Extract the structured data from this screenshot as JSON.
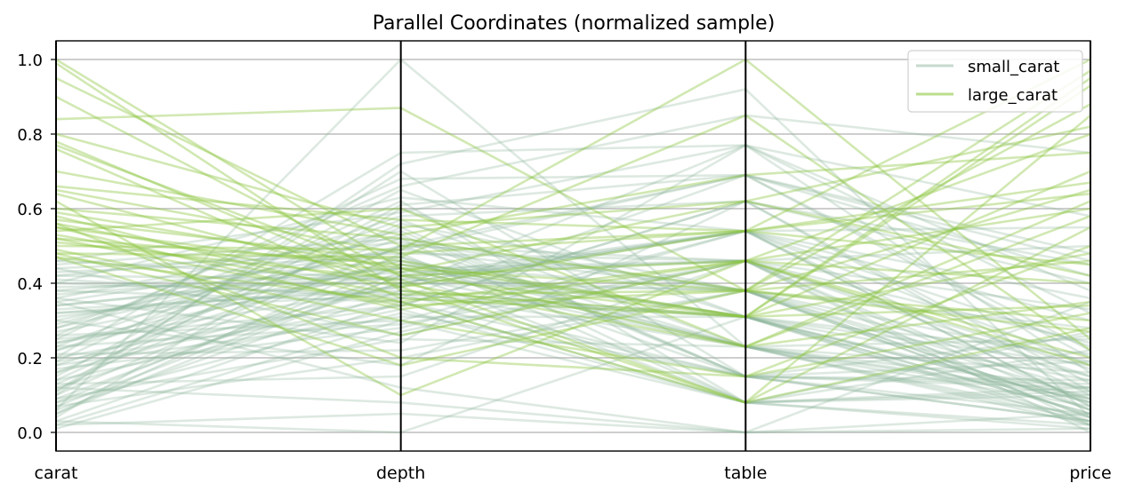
{
  "chart_data": {
    "type": "parallel_coordinates",
    "title": "Parallel Coordinates (normalized sample)",
    "axes": [
      "carat",
      "depth",
      "table",
      "price"
    ],
    "ylim": [
      0,
      1
    ],
    "yticks": [
      "0.0",
      "0.2",
      "0.4",
      "0.6",
      "0.8",
      "1.0"
    ],
    "grid": true,
    "legend_position": "top-right",
    "series": [
      {
        "name": "small_carat",
        "color": "#8fb59c",
        "opacity": 0.3,
        "lines": [
          [
            0.02,
            0.3,
            0.08,
            0.02
          ],
          [
            0.03,
            0.35,
            0.15,
            0.03
          ],
          [
            0.05,
            0.42,
            0.23,
            0.04
          ],
          [
            0.06,
            0.38,
            0.31,
            0.05
          ],
          [
            0.08,
            0.45,
            0.38,
            0.06
          ],
          [
            0.1,
            0.5,
            0.46,
            0.08
          ],
          [
            0.12,
            0.4,
            0.54,
            0.1
          ],
          [
            0.14,
            0.33,
            0.08,
            0.12
          ],
          [
            0.16,
            0.55,
            0.15,
            0.14
          ],
          [
            0.18,
            0.47,
            0.23,
            0.07
          ],
          [
            0.2,
            0.36,
            0.31,
            0.09
          ],
          [
            0.22,
            0.52,
            0.38,
            0.11
          ],
          [
            0.24,
            0.44,
            0.46,
            0.15
          ],
          [
            0.26,
            0.3,
            0.54,
            0.18
          ],
          [
            0.28,
            0.58,
            0.62,
            0.13
          ],
          [
            0.3,
            0.49,
            0.69,
            0.2
          ],
          [
            0.32,
            0.39,
            0.77,
            0.16
          ],
          [
            0.34,
            0.43,
            0.08,
            0.22
          ],
          [
            0.36,
            0.54,
            0.15,
            0.19
          ],
          [
            0.38,
            0.46,
            0.23,
            0.25
          ],
          [
            0.4,
            0.37,
            0.31,
            0.21
          ],
          [
            0.42,
            0.51,
            0.38,
            0.28
          ],
          [
            0.44,
            0.48,
            0.46,
            0.24
          ],
          [
            0.46,
            0.41,
            0.54,
            0.3
          ],
          [
            0.04,
            0.6,
            0.31,
            0.03
          ],
          [
            0.07,
            0.2,
            0.38,
            0.04
          ],
          [
            0.09,
            0.25,
            0.23,
            0.02
          ],
          [
            0.11,
            0.7,
            0.15,
            0.05
          ],
          [
            0.13,
            0.15,
            0.46,
            0.06
          ],
          [
            0.15,
            0.65,
            0.31,
            0.08
          ],
          [
            0.17,
            0.28,
            0.54,
            0.07
          ],
          [
            0.19,
            0.62,
            0.08,
            0.1
          ],
          [
            0.21,
            0.22,
            0.38,
            0.09
          ],
          [
            0.23,
            0.57,
            0.23,
            0.12
          ],
          [
            0.25,
            0.34,
            0.62,
            0.11
          ],
          [
            0.27,
            0.45,
            0.31,
            0.14
          ],
          [
            0.29,
            0.53,
            0.15,
            0.13
          ],
          [
            0.31,
            0.42,
            0.46,
            0.17
          ],
          [
            0.33,
            0.38,
            0.23,
            0.16
          ],
          [
            0.35,
            0.49,
            0.38,
            0.19
          ],
          [
            0.37,
            0.44,
            0.31,
            0.18
          ],
          [
            0.39,
            0.4,
            0.54,
            0.23
          ],
          [
            0.41,
            0.36,
            0.69,
            0.22
          ],
          [
            0.43,
            0.47,
            0.15,
            0.26
          ],
          [
            0.45,
            0.52,
            0.08,
            0.27
          ],
          [
            0.02,
            0.05,
            0.0,
            0.01
          ],
          [
            0.03,
            0.0,
            0.31,
            0.02
          ],
          [
            0.06,
            1.0,
            0.23,
            0.03
          ],
          [
            0.1,
            0.72,
            0.92,
            0.04
          ],
          [
            0.12,
            0.08,
            0.0,
            0.05
          ],
          [
            0.2,
            0.75,
            0.77,
            0.38
          ],
          [
            0.25,
            0.68,
            0.69,
            0.42
          ],
          [
            0.3,
            0.18,
            0.62,
            0.45
          ],
          [
            0.35,
            0.12,
            0.0,
            0.35
          ],
          [
            0.4,
            0.63,
            0.54,
            0.55
          ],
          [
            0.44,
            0.26,
            0.46,
            0.5
          ],
          [
            0.08,
            0.32,
            0.15,
            0.03
          ],
          [
            0.16,
            0.4,
            0.38,
            0.06
          ],
          [
            0.22,
            0.46,
            0.31,
            0.08
          ],
          [
            0.28,
            0.5,
            0.23,
            0.1
          ],
          [
            0.32,
            0.37,
            0.15,
            0.12
          ],
          [
            0.05,
            0.48,
            0.08,
            0.01
          ],
          [
            0.09,
            0.43,
            0.46,
            0.02
          ],
          [
            0.14,
            0.56,
            0.38,
            0.04
          ],
          [
            0.18,
            0.31,
            0.31,
            0.05
          ],
          [
            0.24,
            0.39,
            0.54,
            0.07
          ],
          [
            0.34,
            0.44,
            0.23,
            0.09
          ],
          [
            0.38,
            0.35,
            0.08,
            0.11
          ],
          [
            0.42,
            0.41,
            0.38,
            0.15
          ],
          [
            0.46,
            0.59,
            0.77,
            0.32
          ],
          [
            0.01,
            0.27,
            0.46,
            0.0
          ],
          [
            0.11,
            0.61,
            0.69,
            0.48
          ],
          [
            0.26,
            0.66,
            0.85,
            0.75
          ],
          [
            0.36,
            0.24,
            0.77,
            0.58
          ],
          [
            0.19,
            0.34,
            0.62,
            0.4
          ],
          [
            0.07,
            0.42,
            0.54,
            0.36
          ],
          [
            0.13,
            0.5,
            0.69,
            0.46
          ],
          [
            0.23,
            0.29,
            0.46,
            0.33
          ]
        ]
      },
      {
        "name": "large_carat",
        "color": "#8cc63f",
        "opacity": 0.4,
        "lines": [
          [
            1.0,
            0.44,
            0.38,
            0.97
          ],
          [
            0.99,
            0.38,
            0.31,
            0.93
          ],
          [
            0.95,
            0.5,
            0.54,
            1.0
          ],
          [
            0.84,
            0.87,
            0.38,
            0.88
          ],
          [
            0.8,
            0.55,
            0.62,
            0.82
          ],
          [
            0.77,
            0.42,
            0.46,
            0.8
          ],
          [
            0.76,
            0.36,
            0.31,
            0.7
          ],
          [
            0.65,
            0.48,
            0.54,
            0.67
          ],
          [
            0.64,
            0.4,
            0.23,
            0.62
          ],
          [
            0.62,
            0.1,
            0.46,
            0.6
          ],
          [
            0.6,
            0.52,
            0.38,
            0.65
          ],
          [
            0.58,
            0.35,
            0.08,
            0.55
          ],
          [
            0.57,
            0.46,
            0.31,
            0.48
          ],
          [
            0.56,
            0.2,
            0.15,
            0.5
          ],
          [
            0.56,
            0.39,
            0.54,
            0.45
          ],
          [
            0.55,
            0.43,
            0.62,
            0.42
          ],
          [
            0.55,
            0.33,
            0.46,
            0.4
          ],
          [
            0.54,
            0.6,
            0.23,
            0.35
          ],
          [
            0.53,
            0.37,
            0.38,
            0.3
          ],
          [
            0.52,
            0.45,
            0.31,
            0.34
          ],
          [
            0.51,
            0.41,
            0.08,
            0.28
          ],
          [
            0.5,
            0.49,
            1.0,
            0.25
          ],
          [
            0.49,
            0.3,
            0.15,
            0.32
          ],
          [
            0.48,
            0.47,
            0.85,
            0.22
          ],
          [
            0.47,
            0.35,
            0.46,
            0.2
          ],
          [
            0.47,
            0.18,
            0.38,
            0.46
          ],
          [
            0.9,
            0.42,
            0.31,
            0.95
          ],
          [
            0.7,
            0.53,
            0.69,
            0.75
          ],
          [
            0.78,
            0.39,
            0.08,
            0.85
          ],
          [
            0.59,
            0.44,
            0.23,
            0.58
          ],
          [
            0.66,
            0.57,
            0.54,
            0.64
          ],
          [
            0.52,
            0.34,
            0.38,
            0.27
          ],
          [
            0.48,
            0.26,
            0.46,
            0.18
          ]
        ]
      }
    ]
  }
}
